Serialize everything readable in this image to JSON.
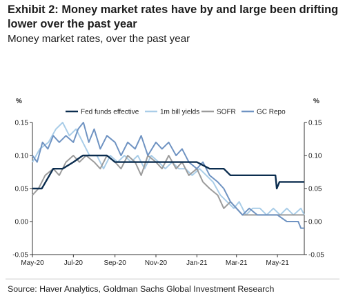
{
  "title": "Exhibit 2: Money market rates have by and large been drifting lower over the past year",
  "subtitle": "Money market rates, over the past year",
  "source": "Source: Haver Analytics, Goldman Sachs Global Investment Research",
  "chart_data": {
    "type": "line",
    "y_unit_left": "%",
    "y_unit_right": "%",
    "ylim": [
      -0.05,
      0.15
    ],
    "y_ticks": [
      "0.15",
      "0.10",
      "0.05",
      "0.00",
      "-0.05"
    ],
    "y_tick_values": [
      0.15,
      0.1,
      0.05,
      0.0,
      -0.05
    ],
    "x_ticks": [
      "May-20",
      "Jul-20",
      "Sep-20",
      "Nov-20",
      "Jan-21",
      "Mar-21",
      "May-21"
    ],
    "x_tick_values": [
      "2020-05-01",
      "2020-07-01",
      "2020-09-01",
      "2020-11-01",
      "2021-01-01",
      "2021-03-01",
      "2021-05-01"
    ],
    "x_range": [
      "2020-05-01",
      "2021-06-10"
    ],
    "legend_position": "top",
    "grid": false,
    "series": [
      {
        "name": "Fed funds effective",
        "color": "#0b2d4f",
        "points": [
          [
            "2020-05-01",
            0.05
          ],
          [
            "2020-05-15",
            0.05
          ],
          [
            "2020-06-01",
            0.08
          ],
          [
            "2020-06-15",
            0.08
          ],
          [
            "2020-07-01",
            0.09
          ],
          [
            "2020-07-15",
            0.1
          ],
          [
            "2020-08-01",
            0.1
          ],
          [
            "2020-08-20",
            0.1
          ],
          [
            "2020-09-01",
            0.09
          ],
          [
            "2020-09-20",
            0.09
          ],
          [
            "2020-10-01",
            0.09
          ],
          [
            "2020-11-01",
            0.09
          ],
          [
            "2020-12-01",
            0.09
          ],
          [
            "2021-01-01",
            0.09
          ],
          [
            "2021-01-20",
            0.08
          ],
          [
            "2021-02-10",
            0.08
          ],
          [
            "2021-02-20",
            0.07
          ],
          [
            "2021-03-15",
            0.07
          ],
          [
            "2021-04-01",
            0.07
          ],
          [
            "2021-04-28",
            0.07
          ],
          [
            "2021-04-30",
            0.05
          ],
          [
            "2021-05-04",
            0.06
          ],
          [
            "2021-05-20",
            0.06
          ],
          [
            "2021-06-10",
            0.06
          ]
        ]
      },
      {
        "name": "1m bill yields",
        "color": "#a9cde8",
        "points": [
          [
            "2020-05-01",
            0.09
          ],
          [
            "2020-05-12",
            0.11
          ],
          [
            "2020-05-25",
            0.12
          ],
          [
            "2020-06-05",
            0.14
          ],
          [
            "2020-06-15",
            0.15
          ],
          [
            "2020-06-25",
            0.13
          ],
          [
            "2020-07-05",
            0.14
          ],
          [
            "2020-07-15",
            0.12
          ],
          [
            "2020-07-25",
            0.1
          ],
          [
            "2020-08-05",
            0.1
          ],
          [
            "2020-08-15",
            0.08
          ],
          [
            "2020-08-25",
            0.1
          ],
          [
            "2020-09-05",
            0.09
          ],
          [
            "2020-09-15",
            0.1
          ],
          [
            "2020-09-25",
            0.09
          ],
          [
            "2020-10-05",
            0.1
          ],
          [
            "2020-10-15",
            0.08
          ],
          [
            "2020-10-25",
            0.1
          ],
          [
            "2020-11-05",
            0.09
          ],
          [
            "2020-11-15",
            0.08
          ],
          [
            "2020-11-25",
            0.09
          ],
          [
            "2020-12-05",
            0.08
          ],
          [
            "2020-12-15",
            0.08
          ],
          [
            "2020-12-25",
            0.07
          ],
          [
            "2021-01-05",
            0.08
          ],
          [
            "2021-01-15",
            0.07
          ],
          [
            "2021-01-25",
            0.06
          ],
          [
            "2021-02-05",
            0.04
          ],
          [
            "2021-02-15",
            0.03
          ],
          [
            "2021-02-25",
            0.02
          ],
          [
            "2021-03-05",
            0.03
          ],
          [
            "2021-03-15",
            0.01
          ],
          [
            "2021-03-25",
            0.02
          ],
          [
            "2021-04-05",
            0.02
          ],
          [
            "2021-04-15",
            0.01
          ],
          [
            "2021-04-25",
            0.02
          ],
          [
            "2021-05-05",
            0.01
          ],
          [
            "2021-05-15",
            0.02
          ],
          [
            "2021-05-25",
            0.01
          ],
          [
            "2021-06-05",
            0.02
          ],
          [
            "2021-06-10",
            0.01
          ]
        ]
      },
      {
        "name": "SOFR",
        "color": "#9b9b9b",
        "points": [
          [
            "2020-05-01",
            0.04
          ],
          [
            "2020-05-10",
            0.05
          ],
          [
            "2020-05-20",
            0.07
          ],
          [
            "2020-06-01",
            0.08
          ],
          [
            "2020-06-10",
            0.07
          ],
          [
            "2020-06-20",
            0.09
          ],
          [
            "2020-07-01",
            0.1
          ],
          [
            "2020-07-10",
            0.09
          ],
          [
            "2020-07-20",
            0.1
          ],
          [
            "2020-08-01",
            0.09
          ],
          [
            "2020-08-10",
            0.08
          ],
          [
            "2020-08-20",
            0.1
          ],
          [
            "2020-09-01",
            0.09
          ],
          [
            "2020-09-10",
            0.08
          ],
          [
            "2020-09-20",
            0.1
          ],
          [
            "2020-10-01",
            0.09
          ],
          [
            "2020-10-10",
            0.07
          ],
          [
            "2020-10-20",
            0.1
          ],
          [
            "2020-11-01",
            0.09
          ],
          [
            "2020-11-10",
            0.08
          ],
          [
            "2020-11-20",
            0.1
          ],
          [
            "2020-12-01",
            0.08
          ],
          [
            "2020-12-10",
            0.09
          ],
          [
            "2020-12-20",
            0.07
          ],
          [
            "2021-01-01",
            0.08
          ],
          [
            "2021-01-10",
            0.06
          ],
          [
            "2021-01-20",
            0.05
          ],
          [
            "2021-02-01",
            0.04
          ],
          [
            "2021-02-10",
            0.02
          ],
          [
            "2021-02-20",
            0.03
          ],
          [
            "2021-03-01",
            0.02
          ],
          [
            "2021-03-10",
            0.01
          ],
          [
            "2021-03-20",
            0.01
          ],
          [
            "2021-04-01",
            0.01
          ],
          [
            "2021-04-15",
            0.01
          ],
          [
            "2021-05-01",
            0.01
          ],
          [
            "2021-05-15",
            0.01
          ],
          [
            "2021-06-01",
            0.01
          ],
          [
            "2021-06-10",
            0.01
          ]
        ]
      },
      {
        "name": "GC Repo",
        "color": "#6f93c2",
        "points": [
          [
            "2020-05-01",
            0.1
          ],
          [
            "2020-05-08",
            0.09
          ],
          [
            "2020-05-16",
            0.12
          ],
          [
            "2020-05-24",
            0.11
          ],
          [
            "2020-06-01",
            0.13
          ],
          [
            "2020-06-10",
            0.12
          ],
          [
            "2020-06-20",
            0.13
          ],
          [
            "2020-07-01",
            0.12
          ],
          [
            "2020-07-08",
            0.14
          ],
          [
            "2020-07-16",
            0.15
          ],
          [
            "2020-07-24",
            0.12
          ],
          [
            "2020-08-01",
            0.14
          ],
          [
            "2020-08-10",
            0.11
          ],
          [
            "2020-08-20",
            0.13
          ],
          [
            "2020-09-01",
            0.12
          ],
          [
            "2020-09-10",
            0.1
          ],
          [
            "2020-09-20",
            0.12
          ],
          [
            "2020-10-01",
            0.11
          ],
          [
            "2020-10-10",
            0.13
          ],
          [
            "2020-10-20",
            0.1
          ],
          [
            "2020-11-01",
            0.12
          ],
          [
            "2020-11-10",
            0.11
          ],
          [
            "2020-11-20",
            0.12
          ],
          [
            "2020-12-01",
            0.1
          ],
          [
            "2020-12-10",
            0.11
          ],
          [
            "2020-12-20",
            0.09
          ],
          [
            "2021-01-01",
            0.08
          ],
          [
            "2021-01-10",
            0.09
          ],
          [
            "2021-01-20",
            0.07
          ],
          [
            "2021-02-01",
            0.06
          ],
          [
            "2021-02-10",
            0.05
          ],
          [
            "2021-02-20",
            0.03
          ],
          [
            "2021-03-01",
            0.02
          ],
          [
            "2021-03-10",
            0.01
          ],
          [
            "2021-03-20",
            0.02
          ],
          [
            "2021-04-01",
            0.01
          ],
          [
            "2021-04-15",
            0.01
          ],
          [
            "2021-05-01",
            0.01
          ],
          [
            "2021-05-15",
            0.0
          ],
          [
            "2021-06-01",
            0.0
          ],
          [
            "2021-06-05",
            -0.01
          ],
          [
            "2021-06-10",
            -0.01
          ]
        ]
      }
    ]
  }
}
